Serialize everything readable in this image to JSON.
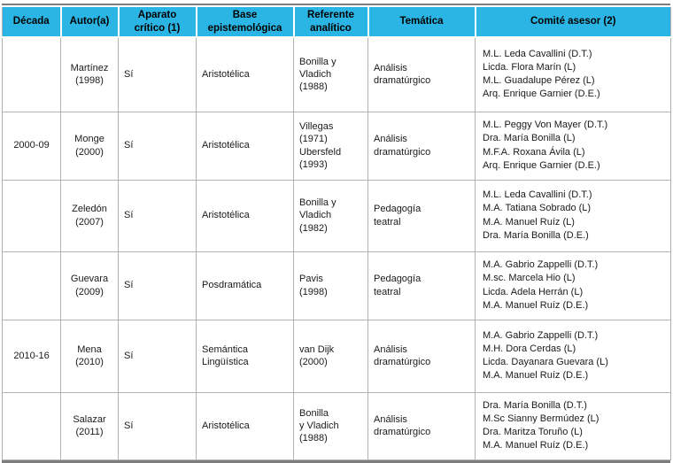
{
  "colors": {
    "header_bg": "#2ab5e4",
    "header_text": "#000000",
    "body_border": "#b2b2b2",
    "outer_border": "#7d7d7d"
  },
  "table": {
    "columns": [
      {
        "key": "decada",
        "label": "Década"
      },
      {
        "key": "autor",
        "label": "Autor(a)"
      },
      {
        "key": "aparato",
        "label": "Aparato\ncrítico (1)"
      },
      {
        "key": "base",
        "label": "Base\nepistemológica"
      },
      {
        "key": "referente",
        "label": "Referente\nanalítico"
      },
      {
        "key": "tematica",
        "label": "Temática"
      },
      {
        "key": "comite",
        "label": "Comité asesor (2)"
      }
    ],
    "rows": [
      {
        "decada": "",
        "autor": "Martínez\n(1998)",
        "aparato": "Sí",
        "base": "Aristotélica",
        "referente": "Bonilla y\nVladich\n(1988)",
        "tematica": "Análisis\ndramatúrgico",
        "comite": [
          "M.L. Leda Cavallini (D.T.)",
          "Licda. Flora Marín (L)",
          "M.L. Guadalupe Pérez (L)",
          "Arq. Enrique Garnier (D.E.)"
        ]
      },
      {
        "decada": "2000-09",
        "autor": "Monge\n(2000)",
        "aparato": "Sí",
        "base": "Aristotélica",
        "referente": "Villegas\n(1971)\nUbersfeld\n(1993)",
        "tematica": "Análisis\ndramatúrgico",
        "comite": [
          "M.L. Peggy Von Mayer (D.T.)",
          "Dra. María Bonilla (L)",
          "M.F.A. Roxana Ávila (L)",
          "Arq. Enrique Garnier (D.E.)"
        ]
      },
      {
        "decada": "",
        "autor": "Zeledón\n(2007)",
        "aparato": "Sí",
        "base": "Aristotélica",
        "referente": "Bonilla y\nVladich\n(1982)",
        "tematica": "Pedagogía\nteatral",
        "comite": [
          "M.L. Leda Cavallini (D.T.)",
          "M.A. Tatiana Sobrado (L)",
          "M.A. Manuel Ruíz (L)",
          "Dra. María Bonilla (D.E.)"
        ]
      },
      {
        "decada": "",
        "autor": "Guevara\n(2009)",
        "aparato": "Sí",
        "base": "Posdramática",
        "referente": "Pavis\n(1998)",
        "tematica": "Pedagogía\nteatral",
        "comite": [
          "M.A. Gabrio Zappelli (D.T.)",
          "M.sc. Marcela Hio (L)",
          "Licda. Adela Herrán (L)",
          "M.A. Manuel Ruíz (D.E.)"
        ]
      },
      {
        "decada": "2010-16",
        "autor": "Mena\n(2010)",
        "aparato": "Sí",
        "base": "Semántica\nLingüística",
        "referente": "van Dijk\n(2000)",
        "tematica": "Análisis\ndramatúrgico",
        "comite": [
          "M.A. Gabrio Zappelli (D.T.)",
          "M.H. Dora Cerdas (L)",
          "Licda. Dayanara Guevara (L)",
          "M.A. Manuel Ruíz (D.E.)"
        ]
      },
      {
        "decada": "",
        "autor": "Salazar\n(2011)",
        "aparato": "Sí",
        "base": "Aristotélica",
        "referente": "Bonilla\ny Vladich\n(1988)",
        "tematica": "Análisis\n dramatúrgico",
        "comite": [
          "Dra. María Bonilla (D.T.)",
          "M.Sc Sianny Bermúdez (L)",
          "Dra. Maritza Toruño (L)",
          "M.A. Manuel Ruíz (D.E.)"
        ]
      }
    ]
  }
}
